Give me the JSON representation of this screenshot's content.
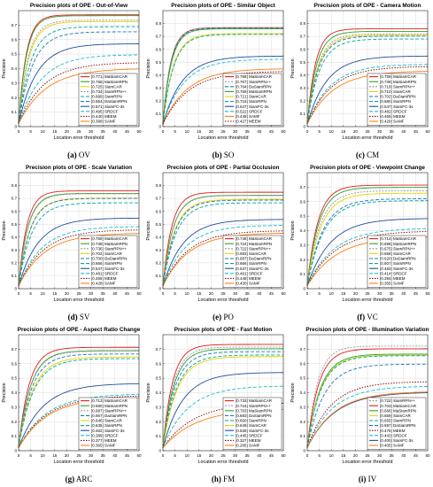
{
  "chart_data": [
    {
      "type": "line",
      "title": "Precision plots of OPE - Out-of-View",
      "caption": {
        "letter": "(a)",
        "label": "OV"
      },
      "xlabel": "Location error threshold",
      "ylabel": "Precision",
      "xlim": [
        0,
        50
      ],
      "ylim": [
        0,
        0.8
      ],
      "xticks": [
        0,
        5,
        10,
        15,
        20,
        25,
        30,
        35,
        40,
        45,
        50
      ],
      "yticks": [
        0,
        0.1,
        0.2,
        0.3,
        0.4,
        0.5,
        0.6,
        0.7
      ],
      "grid": true,
      "legend_position": "bottom-right",
      "series": [
        {
          "name": "[0.771] MaSiamCAR",
          "value": 0.771,
          "color": "#e41a1c",
          "dash": ""
        },
        {
          "name": "[0.765] MaSiamRPN",
          "value": 0.765,
          "color": "#2ca02c",
          "dash": ""
        },
        {
          "name": "[0.725] SiamCAR",
          "value": 0.725,
          "color": "#e5d400",
          "dash": ""
        },
        {
          "name": "[0.734] SiamRPN++",
          "value": 0.734,
          "color": "#999999",
          "dash": "2,1.5"
        },
        {
          "name": "[0.689] SiamRPN",
          "value": 0.689,
          "color": "#00a6a6",
          "dash": "4,2"
        },
        {
          "name": "[0.654] DaSiamRPN",
          "value": 0.654,
          "color": "#1f77b4",
          "dash": "4,2"
        },
        {
          "name": "[0.571] SiamFC-3s",
          "value": 0.571,
          "color": "#1f4e9c",
          "dash": ""
        },
        {
          "name": "[0.495] SRDCF",
          "value": 0.495,
          "color": "#17becf",
          "dash": "4,2"
        },
        {
          "name": "[0.440] MEEM",
          "value": 0.44,
          "color": "#8b0000",
          "dash": "1.5,1.5"
        },
        {
          "name": "[0.398] SAMF",
          "value": 0.398,
          "color": "#ff7f0e",
          "dash": ""
        }
      ]
    },
    {
      "type": "line",
      "title": "Precision plots of OPE - Similar Object",
      "caption": {
        "letter": "(b)",
        "label": "SO"
      },
      "xlabel": "Location error threshold",
      "ylabel": "Precision",
      "xlim": [
        0,
        50
      ],
      "ylim": [
        0,
        0.9
      ],
      "xticks": [
        0,
        5,
        10,
        15,
        20,
        25,
        30,
        35,
        40,
        45,
        50
      ],
      "yticks": [
        0,
        0.1,
        0.2,
        0.3,
        0.4,
        0.5,
        0.6,
        0.7,
        0.8
      ],
      "grid": true,
      "legend_position": "bottom-right",
      "series": [
        {
          "name": "[0.768] MaSiamCAR",
          "value": 0.768,
          "color": "#e41a1c",
          "dash": ""
        },
        {
          "name": "[0.767] SiamRPN++",
          "value": 0.767,
          "color": "#999999",
          "dash": "2,1.5"
        },
        {
          "name": "[0.764] DaSiamRPN",
          "value": 0.764,
          "color": "#1f77b4",
          "dash": "4,2"
        },
        {
          "name": "[0.759] MaSiamRPN",
          "value": 0.759,
          "color": "#2ca02c",
          "dash": ""
        },
        {
          "name": "[0.721] SiamCAR",
          "value": 0.721,
          "color": "#e5d400",
          "dash": ""
        },
        {
          "name": "[0.716] SiamRPN",
          "value": 0.716,
          "color": "#00a6a6",
          "dash": "4,2"
        },
        {
          "name": "[0.547] SiamFC-3s",
          "value": 0.547,
          "color": "#1f4e9c",
          "dash": ""
        },
        {
          "name": "[0.522] SRDCF",
          "value": 0.522,
          "color": "#17becf",
          "dash": "4,2"
        },
        {
          "name": "[0.448] SAMF",
          "value": 0.448,
          "color": "#ff7f0e",
          "dash": ""
        },
        {
          "name": "[0.427] MEEM",
          "value": 0.427,
          "color": "#8b0000",
          "dash": "1.5,1.5"
        }
      ]
    },
    {
      "type": "line",
      "title": "Precision plots of OPE - Camera Motion",
      "caption": {
        "letter": "(c)",
        "label": "CM"
      },
      "xlabel": "Location error threshold",
      "ylabel": "Precision",
      "xlim": [
        0,
        50
      ],
      "ylim": [
        0,
        0.9
      ],
      "xticks": [
        0,
        5,
        10,
        15,
        20,
        25,
        30,
        35,
        40,
        45,
        50
      ],
      "yticks": [
        0,
        0.1,
        0.2,
        0.3,
        0.4,
        0.5,
        0.6,
        0.7,
        0.8
      ],
      "grid": true,
      "legend_position": "bottom-right",
      "series": [
        {
          "name": "[0.759] MaSiamCAR",
          "value": 0.759,
          "color": "#e41a1c",
          "dash": ""
        },
        {
          "name": "[0.739] MaSiamRPN",
          "value": 0.739,
          "color": "#2ca02c",
          "dash": ""
        },
        {
          "name": "[0.719] SiamRPN++",
          "value": 0.719,
          "color": "#999999",
          "dash": "2,1.5"
        },
        {
          "name": "[0.710] SiamCAR",
          "value": 0.71,
          "color": "#e5d400",
          "dash": ""
        },
        {
          "name": "[0.702] DaSiamRPN",
          "value": 0.702,
          "color": "#1f77b4",
          "dash": "4,2"
        },
        {
          "name": "[0.680] SiamRPN",
          "value": 0.68,
          "color": "#00a6a6",
          "dash": "4,2"
        },
        {
          "name": "[0.547] SiamFC-3s",
          "value": 0.547,
          "color": "#1f4e9c",
          "dash": ""
        },
        {
          "name": "[0.482] SRDCF",
          "value": 0.482,
          "color": "#17becf",
          "dash": "4,2"
        },
        {
          "name": "[0.465] MEEM",
          "value": 0.465,
          "color": "#8b0000",
          "dash": "1.5,1.5"
        },
        {
          "name": "[0.429] SAMF",
          "value": 0.429,
          "color": "#ff7f0e",
          "dash": ""
        }
      ]
    },
    {
      "type": "line",
      "title": "Precision plots of OPE - Scale Variation",
      "caption": {
        "letter": "(d)",
        "label": "SV"
      },
      "xlabel": "Location error threshold",
      "ylabel": "Precision",
      "xlim": [
        0,
        50
      ],
      "ylim": [
        0,
        0.9
      ],
      "xticks": [
        0,
        5,
        10,
        15,
        20,
        25,
        30,
        35,
        40,
        45,
        50
      ],
      "yticks": [
        0,
        0.1,
        0.2,
        0.3,
        0.4,
        0.5,
        0.6,
        0.7,
        0.8
      ],
      "grid": true,
      "legend_position": "bottom-right",
      "series": [
        {
          "name": "[0.759] MaSiamCAR",
          "value": 0.759,
          "color": "#e41a1c",
          "dash": ""
        },
        {
          "name": "[0.739] MaSiamRPN",
          "value": 0.739,
          "color": "#2ca02c",
          "dash": ""
        },
        {
          "name": "[0.736] SiamRPN++",
          "value": 0.736,
          "color": "#999999",
          "dash": "2,1.5"
        },
        {
          "name": "[0.702] SiamCAR",
          "value": 0.702,
          "color": "#e5d400",
          "dash": ""
        },
        {
          "name": "[0.700] DaSiamRPN",
          "value": 0.7,
          "color": "#1f77b4",
          "dash": "4,2"
        },
        {
          "name": "[0.666] SiamRPN",
          "value": 0.666,
          "color": "#00a6a6",
          "dash": "4,2"
        },
        {
          "name": "[0.547] SiamFC-3s",
          "value": 0.547,
          "color": "#1f4e9c",
          "dash": ""
        },
        {
          "name": "[0.481] SRDCF",
          "value": 0.481,
          "color": "#17becf",
          "dash": "4,2"
        },
        {
          "name": "[0.455] MEEM",
          "value": 0.455,
          "color": "#8b0000",
          "dash": "1.5,1.5"
        },
        {
          "name": "[0.428] SAMF",
          "value": 0.428,
          "color": "#ff7f0e",
          "dash": ""
        }
      ]
    },
    {
      "type": "line",
      "title": "Precision plots of OPE - Partial Occlusion",
      "caption": {
        "letter": "(e)",
        "label": "PO"
      },
      "xlabel": "Location error threshold",
      "ylabel": "Precision",
      "xlim": [
        0,
        50
      ],
      "ylim": [
        0,
        0.9
      ],
      "xticks": [
        0,
        5,
        10,
        15,
        20,
        25,
        30,
        35,
        40,
        45,
        50
      ],
      "yticks": [
        0,
        0.1,
        0.2,
        0.3,
        0.4,
        0.5,
        0.6,
        0.7,
        0.8
      ],
      "grid": true,
      "legend_position": "bottom-right",
      "series": [
        {
          "name": "[0.748] MaSiamCAR",
          "value": 0.748,
          "color": "#e41a1c",
          "dash": ""
        },
        {
          "name": "[0.724] MaSiamRPN",
          "value": 0.724,
          "color": "#2ca02c",
          "dash": ""
        },
        {
          "name": "[0.722] SiamRPN++",
          "value": 0.722,
          "color": "#999999",
          "dash": "2,1.5"
        },
        {
          "name": "[0.693] SiamCAR",
          "value": 0.693,
          "color": "#e5d400",
          "dash": ""
        },
        {
          "name": "[0.687] DaSiamRPN",
          "value": 0.687,
          "color": "#1f77b4",
          "dash": "4,2"
        },
        {
          "name": "[0.666] SiamRPN",
          "value": 0.666,
          "color": "#00a6a6",
          "dash": "4,2"
        },
        {
          "name": "[0.537] SiamFC-3s",
          "value": 0.537,
          "color": "#1f4e9c",
          "dash": ""
        },
        {
          "name": "[0.491] SRDCF",
          "value": 0.491,
          "color": "#17becf",
          "dash": "4,2"
        },
        {
          "name": "[0.448] MEEM",
          "value": 0.448,
          "color": "#8b0000",
          "dash": "1.5,1.5"
        },
        {
          "name": "[0.430] SAMF",
          "value": 0.43,
          "color": "#ff7f0e",
          "dash": ""
        }
      ]
    },
    {
      "type": "line",
      "title": "Precision plots of OPE - Viewpoint Change",
      "caption": {
        "letter": "(f)",
        "label": "VC"
      },
      "xlabel": "Location error threshold",
      "ylabel": "Precision",
      "xlim": [
        0,
        50
      ],
      "ylim": [
        0,
        0.8
      ],
      "xticks": [
        0,
        5,
        10,
        15,
        20,
        25,
        30,
        35,
        40,
        45,
        50
      ],
      "yticks": [
        0,
        0.1,
        0.2,
        0.3,
        0.4,
        0.5,
        0.6,
        0.7
      ],
      "grid": true,
      "legend_position": "bottom-right",
      "series": [
        {
          "name": "[0.714] MaSiamCAR",
          "value": 0.714,
          "color": "#e41a1c",
          "dash": ""
        },
        {
          "name": "[0.698] MaSiamRPN",
          "value": 0.698,
          "color": "#2ca02c",
          "dash": ""
        },
        {
          "name": "[0.675] SiamRPN++",
          "value": 0.675,
          "color": "#999999",
          "dash": "2,1.5"
        },
        {
          "name": "[0.658] SiamCAR",
          "value": 0.658,
          "color": "#e5d400",
          "dash": ""
        },
        {
          "name": "[0.620] DaSiamRPN",
          "value": 0.62,
          "color": "#1f77b4",
          "dash": "4,2"
        },
        {
          "name": "[0.607] SiamRPN",
          "value": 0.607,
          "color": "#00a6a6",
          "dash": "4,2"
        },
        {
          "name": "[0.483] SiamFC-3s",
          "value": 0.483,
          "color": "#1f4e9c",
          "dash": ""
        },
        {
          "name": "[0.414] SRDCF",
          "value": 0.414,
          "color": "#17becf",
          "dash": "4,2"
        },
        {
          "name": "[0.394] MEEM",
          "value": 0.394,
          "color": "#8b0000",
          "dash": "1.5,1.5"
        },
        {
          "name": "[0.355] SAMF",
          "value": 0.355,
          "color": "#ff7f0e",
          "dash": ""
        }
      ]
    },
    {
      "type": "line",
      "title": "Precision plots of OPE - Aspect Ratio Change",
      "caption": {
        "letter": "(g)",
        "label": "ARC"
      },
      "xlabel": "Location error threshold",
      "ylabel": "Precision",
      "xlim": [
        0,
        50
      ],
      "ylim": [
        0,
        0.8
      ],
      "xticks": [
        0,
        5,
        10,
        15,
        20,
        25,
        30,
        35,
        40,
        45,
        50
      ],
      "yticks": [
        0,
        0.1,
        0.2,
        0.3,
        0.4,
        0.5,
        0.6,
        0.7
      ],
      "grid": true,
      "legend_position": "bottom-right",
      "series": [
        {
          "name": "[0.713] MaSiamCAR",
          "value": 0.713,
          "color": "#e41a1c",
          "dash": ""
        },
        {
          "name": "[0.690] MaSiamRPN",
          "value": 0.69,
          "color": "#2ca02c",
          "dash": ""
        },
        {
          "name": "[0.687] SiamRPN++",
          "value": 0.687,
          "color": "#999999",
          "dash": "2,1.5"
        },
        {
          "name": "[0.667] DaSiamRPN",
          "value": 0.667,
          "color": "#1f77b4",
          "dash": "4,2"
        },
        {
          "name": "[0.646] SiamCAR",
          "value": 0.646,
          "color": "#e5d400",
          "dash": ""
        },
        {
          "name": "[0.635] SiamRPN",
          "value": 0.635,
          "color": "#00a6a6",
          "dash": "4,2"
        },
        {
          "name": "[0.462] SiamFC-3s",
          "value": 0.462,
          "color": "#1f4e9c",
          "dash": ""
        },
        {
          "name": "[0.389] SRDCF",
          "value": 0.389,
          "color": "#17becf",
          "dash": "4,2"
        },
        {
          "name": "[0.377] MEEM",
          "value": 0.377,
          "color": "#8b0000",
          "dash": "1.5,1.5"
        },
        {
          "name": "[0.365] SAMF",
          "value": 0.365,
          "color": "#ff7f0e",
          "dash": ""
        }
      ]
    },
    {
      "type": "line",
      "title": "Precision plots of OPE - Fast Motion",
      "caption": {
        "letter": "(h)",
        "label": "FM"
      },
      "xlabel": "Location error threshold",
      "ylabel": "Precision",
      "xlim": [
        0,
        50
      ],
      "ylim": [
        0,
        0.8
      ],
      "xticks": [
        0,
        5,
        10,
        15,
        20,
        25,
        30,
        35,
        40,
        45,
        50
      ],
      "yticks": [
        0,
        0.1,
        0.2,
        0.3,
        0.4,
        0.5,
        0.6,
        0.7
      ],
      "grid": true,
      "legend_position": "bottom-right",
      "series": [
        {
          "name": "[0.733] MaSiamCAR",
          "value": 0.733,
          "color": "#e41a1c",
          "dash": ""
        },
        {
          "name": "[0.715] SiamRPN++",
          "value": 0.715,
          "color": "#999999",
          "dash": "2,1.5"
        },
        {
          "name": "[0.703] MaSiamRPN",
          "value": 0.703,
          "color": "#2ca02c",
          "dash": ""
        },
        {
          "name": "[0.683] DaSiamRPN",
          "value": 0.683,
          "color": "#1f77b4",
          "dash": "4,2"
        },
        {
          "name": "[0.660] SiamRPN",
          "value": 0.66,
          "color": "#00a6a6",
          "dash": "4,2"
        },
        {
          "name": "[0.649] SiamCAR",
          "value": 0.649,
          "color": "#e5d400",
          "dash": ""
        },
        {
          "name": "[0.539] SiamFC-3s",
          "value": 0.539,
          "color": "#1f4e9c",
          "dash": ""
        },
        {
          "name": "[0.445] SRDCF",
          "value": 0.445,
          "color": "#17becf",
          "dash": "4,2"
        },
        {
          "name": "[0.327] MEEM",
          "value": 0.327,
          "color": "#8b0000",
          "dash": "1.5,1.5"
        },
        {
          "name": "[0.285] SAMF",
          "value": 0.285,
          "color": "#ff7f0e",
          "dash": ""
        }
      ]
    },
    {
      "type": "line",
      "title": "Precision plots of OPE - Illumination Variation",
      "caption": {
        "letter": "(i)",
        "label": "IV"
      },
      "xlabel": "Location error threshold",
      "ylabel": "Precision",
      "xlim": [
        0,
        50
      ],
      "ylim": [
        0,
        0.8
      ],
      "xticks": [
        0,
        5,
        10,
        15,
        20,
        25,
        30,
        35,
        40,
        45,
        50
      ],
      "yticks": [
        0,
        0.1,
        0.2,
        0.3,
        0.4,
        0.5,
        0.6,
        0.7
      ],
      "grid": true,
      "legend_position": "bottom-right",
      "series": [
        {
          "name": "[0.722] SiamRPN++",
          "value": 0.722,
          "color": "#999999",
          "dash": "2,1.5"
        },
        {
          "name": "[0.703] MaSiamCAR",
          "value": 0.703,
          "color": "#e41a1c",
          "dash": ""
        },
        {
          "name": "[0.666] MaSiamRPN",
          "value": 0.666,
          "color": "#2ca02c",
          "dash": ""
        },
        {
          "name": "[0.659] SiamCAR",
          "value": 0.659,
          "color": "#e5d400",
          "dash": ""
        },
        {
          "name": "[0.655] SiamRPN",
          "value": 0.655,
          "color": "#00a6a6",
          "dash": "4,2"
        },
        {
          "name": "[0.597] DaSiamRPN",
          "value": 0.597,
          "color": "#1f77b4",
          "dash": "4,2"
        },
        {
          "name": "[0.475] MEEM",
          "value": 0.475,
          "color": "#8b0000",
          "dash": "1.5,1.5"
        },
        {
          "name": "[0.443] SRDCF",
          "value": 0.443,
          "color": "#17becf",
          "dash": "4,2"
        },
        {
          "name": "[0.400] SiamFC-3s",
          "value": 0.4,
          "color": "#1f4e9c",
          "dash": ""
        },
        {
          "name": "[0.405] SAMF",
          "value": 0.405,
          "color": "#ff7f0e",
          "dash": ""
        }
      ]
    }
  ]
}
